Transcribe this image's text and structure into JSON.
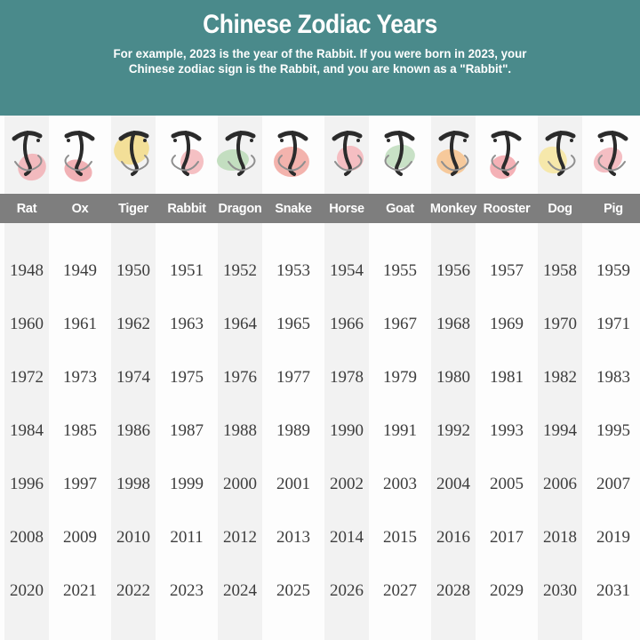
{
  "header": {
    "title": "Chinese Zodiac Years",
    "subtitle_line1": "For example, 2023 is the year of the Rabbit. If you were born in 2023, your",
    "subtitle_line2": "Chinese zodiac sign is the Rabbit, and you are known as a \"Rabbit\".",
    "background_color": "#4a8a8b",
    "text_color": "#ffffff"
  },
  "name_bar": {
    "background_color": "#7e7e7e",
    "text_color": "#ffffff"
  },
  "table_style": {
    "stripe_color": "#f2f2f2",
    "year_text_color": "#3d3d3d"
  },
  "zodiac": [
    {
      "name": "Rat",
      "character": "子",
      "blob_color": "#f2b4b8"
    },
    {
      "name": "Ox",
      "character": "丑",
      "blob_color": "#f0a9ad"
    },
    {
      "name": "Tiger",
      "character": "寅",
      "blob_color": "#f3dd8e"
    },
    {
      "name": "Rabbit",
      "character": "卯",
      "blob_color": "#f4b9bd"
    },
    {
      "name": "Dragon",
      "character": "辰",
      "blob_color": "#bedcba"
    },
    {
      "name": "Snake",
      "character": "巳",
      "blob_color": "#f2aba4"
    },
    {
      "name": "Horse",
      "character": "午",
      "blob_color": "#f5b8bc"
    },
    {
      "name": "Goat",
      "character": "未",
      "blob_color": "#c2dec0"
    },
    {
      "name": "Monkey",
      "character": "申",
      "blob_color": "#f6c491"
    },
    {
      "name": "Rooster",
      "character": "酉",
      "blob_color": "#f3a9ae"
    },
    {
      "name": "Dog",
      "character": "戌",
      "blob_color": "#f6e7a3"
    },
    {
      "name": "Pig",
      "character": "亥",
      "blob_color": "#f3b7bd"
    }
  ],
  "chart_data": {
    "type": "table",
    "title": "Chinese Zodiac Years",
    "columns": [
      "Rat",
      "Ox",
      "Tiger",
      "Rabbit",
      "Dragon",
      "Snake",
      "Horse",
      "Goat",
      "Monkey",
      "Rooster",
      "Dog",
      "Pig"
    ],
    "rows": [
      [
        1948,
        1949,
        1950,
        1951,
        1952,
        1953,
        1954,
        1955,
        1956,
        1957,
        1958,
        1959
      ],
      [
        1960,
        1961,
        1962,
        1963,
        1964,
        1965,
        1966,
        1967,
        1968,
        1969,
        1970,
        1971
      ],
      [
        1972,
        1973,
        1974,
        1975,
        1976,
        1977,
        1978,
        1979,
        1980,
        1981,
        1982,
        1983
      ],
      [
        1984,
        1985,
        1986,
        1987,
        1988,
        1989,
        1990,
        1991,
        1992,
        1993,
        1994,
        1995
      ],
      [
        1996,
        1997,
        1998,
        1999,
        2000,
        2001,
        2002,
        2003,
        2004,
        2005,
        2006,
        2007
      ],
      [
        2008,
        2009,
        2010,
        2011,
        2012,
        2013,
        2014,
        2015,
        2016,
        2017,
        2018,
        2019
      ],
      [
        2020,
        2021,
        2022,
        2023,
        2024,
        2025,
        2026,
        2027,
        2028,
        2029,
        2030,
        2031
      ]
    ]
  }
}
